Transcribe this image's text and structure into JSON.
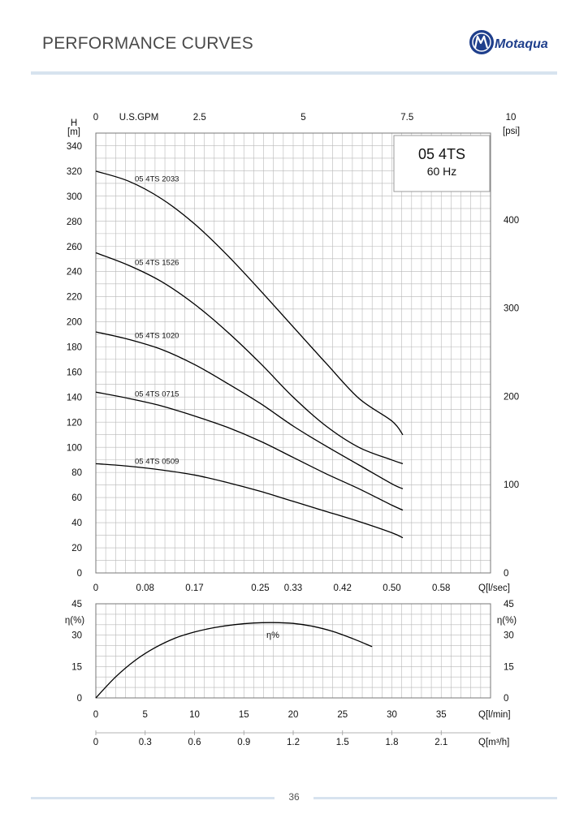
{
  "header": {
    "title": "PERFORMANCE CURVES",
    "logo_text": "Motaqua",
    "rule_color": "#d7e3ef"
  },
  "footer": {
    "page_number": "36"
  },
  "colors": {
    "logo_blue": "#1f3f8c",
    "grid": "#b8b8b8",
    "curve": "#000000"
  },
  "chart_data": [
    {
      "type": "line",
      "title": "05 4TS",
      "subtitle": "60 Hz",
      "ylabel": "H",
      "yunit": "[m]",
      "ylim": [
        0,
        340
      ],
      "y_ticks": [
        0,
        20,
        40,
        60,
        80,
        100,
        120,
        140,
        160,
        180,
        200,
        220,
        240,
        260,
        280,
        300,
        320,
        340
      ],
      "xlabel": "Q[l/sec]",
      "xlim": [
        0,
        0.6
      ],
      "x_ticks": [
        "0",
        "0.08",
        "0.17",
        "0.25",
        "0.33",
        "0.42",
        "0.50",
        "0.58"
      ],
      "top_axis": {
        "label": "U.S.GPM",
        "ticks": [
          "0",
          "2.5",
          "5",
          "7.5",
          "10"
        ]
      },
      "right_axis": {
        "label": "[psi]",
        "ticks": [
          "0",
          "100",
          "200",
          "300",
          "400"
        ]
      },
      "grid": true,
      "series": [
        {
          "name": "05 4TS 2033",
          "x": [
            0,
            0.05,
            0.1,
            0.15,
            0.2,
            0.25,
            0.3,
            0.35,
            0.4,
            0.45,
            0.4667
          ],
          "y": [
            320,
            312,
            298,
            278,
            253,
            225,
            196,
            167,
            139,
            121,
            110
          ]
        },
        {
          "name": "05 4TS 1526",
          "x": [
            0,
            0.05,
            0.1,
            0.15,
            0.2,
            0.25,
            0.3,
            0.35,
            0.4,
            0.45,
            0.4667
          ],
          "y": [
            255,
            245,
            232,
            214,
            192,
            167,
            140,
            117,
            100,
            90,
            87
          ]
        },
        {
          "name": "05 4TS 1020",
          "x": [
            0,
            0.05,
            0.1,
            0.15,
            0.2,
            0.25,
            0.3,
            0.35,
            0.4,
            0.45,
            0.4667
          ],
          "y": [
            192,
            186,
            178,
            166,
            151,
            135,
            117,
            101,
            86,
            71,
            67
          ]
        },
        {
          "name": "05 4TS 0715",
          "x": [
            0,
            0.05,
            0.1,
            0.15,
            0.2,
            0.25,
            0.3,
            0.35,
            0.4,
            0.45,
            0.4667
          ],
          "y": [
            144,
            139,
            133,
            125,
            116,
            105,
            92,
            79,
            67,
            54,
            50
          ]
        },
        {
          "name": "05 4TS 0509",
          "x": [
            0,
            0.05,
            0.1,
            0.15,
            0.2,
            0.25,
            0.3,
            0.35,
            0.4,
            0.45,
            0.4667
          ],
          "y": [
            87,
            85,
            82,
            78,
            72,
            65,
            57,
            49,
            41,
            32,
            28
          ]
        }
      ]
    },
    {
      "type": "line",
      "ylabel": "η(%)",
      "ylim": [
        0,
        45
      ],
      "y_ticks": [
        0,
        15,
        30,
        45
      ],
      "xlabel": "Q[l/min]",
      "xlim": [
        0,
        40
      ],
      "x_ticks": [
        "0",
        "5",
        "10",
        "15",
        "20",
        "25",
        "30",
        "35"
      ],
      "secondary_xlabel": "Q[m³/h]",
      "secondary_x_ticks": [
        "0",
        "0.3",
        "0.6",
        "0.9",
        "1.2",
        "1.5",
        "1.8",
        "2.1"
      ],
      "grid": true,
      "series": [
        {
          "name": "η%",
          "x": [
            0,
            2,
            4,
            6,
            8,
            10,
            12,
            14,
            16,
            18,
            20,
            22,
            24,
            26,
            28
          ],
          "y": [
            0,
            10,
            18,
            24,
            28.5,
            31.5,
            33.6,
            35,
            35.8,
            36,
            35.6,
            34.2,
            31.8,
            28.4,
            24.5
          ]
        }
      ]
    }
  ]
}
